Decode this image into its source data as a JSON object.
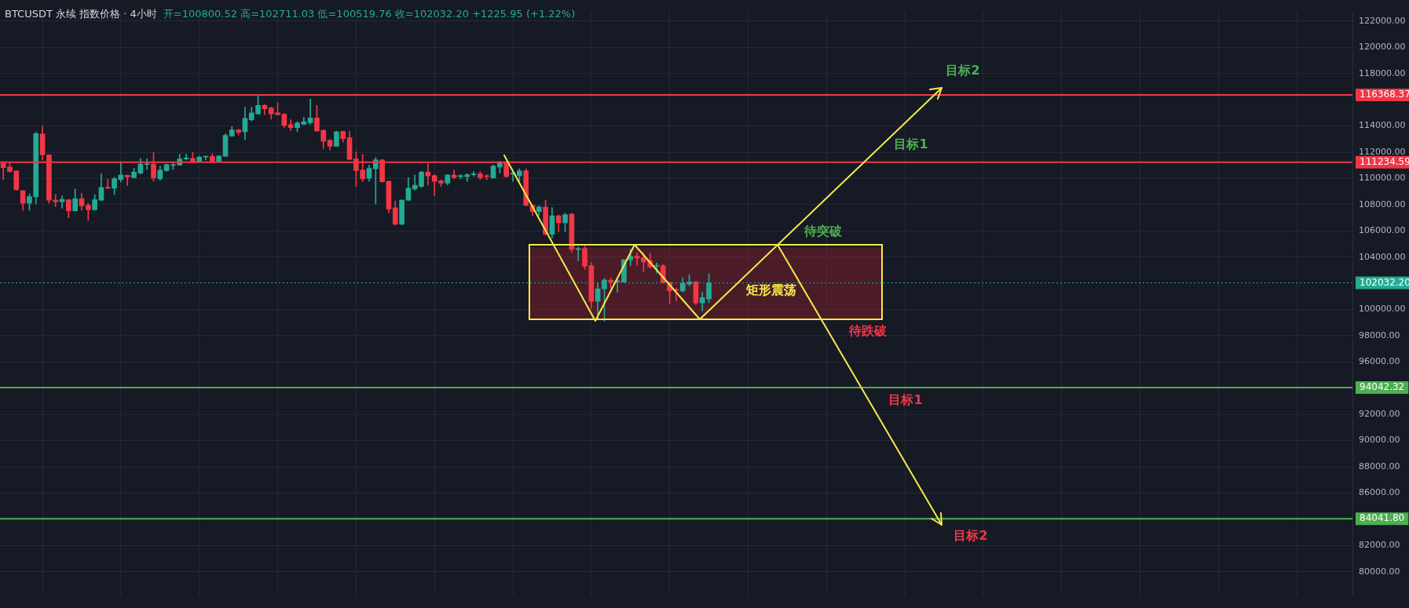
{
  "chart_data": {
    "type": "candlestick",
    "title": "BTCUSDT 永续 指数价格 · 4小时",
    "subtitle": "开=100800.52 高=102711.03 低=100519.76 收=102032.20 +1225.95 (+1.22%)",
    "categories": [
      null,
      null,
      null,
      null,
      null,
      null,
      null,
      null,
      null,
      null,
      null,
      null,
      null,
      null,
      null,
      null,
      null,
      null,
      null,
      null,
      null,
      null,
      null,
      null,
      null,
      null,
      null,
      null,
      null,
      null,
      null,
      null,
      null,
      null,
      null,
      null,
      null,
      null,
      null,
      null,
      null,
      null,
      null,
      null,
      null,
      null,
      null,
      null,
      null,
      null,
      null,
      null,
      null,
      null,
      null,
      null,
      null,
      null,
      null,
      null,
      null,
      null,
      null,
      null,
      null,
      null,
      null,
      null,
      null,
      null,
      null,
      null,
      null,
      null,
      null,
      null,
      null,
      null,
      null,
      null,
      null,
      null,
      null,
      null,
      null,
      null,
      null,
      null,
      null,
      null,
      null,
      null,
      null,
      null,
      null,
      null,
      null,
      null,
      null,
      null,
      null,
      null,
      null,
      null,
      null,
      null,
      null,
      null,
      null,
      null,
      null,
      null,
      null,
      null,
      null,
      null,
      null,
      null,
      null,
      null,
      null,
      null,
      null,
      null,
      null,
      null,
      null,
      null,
      null,
      null,
      null,
      null,
      null,
      null,
      null,
      null,
      null,
      null,
      null,
      null,
      null,
      null,
      null,
      null,
      null,
      null,
      null,
      null,
      null,
      null,
      null,
      null,
      null,
      null,
      null,
      null,
      null,
      null,
      null,
      null,
      null,
      null,
      null,
      null,
      null,
      null,
      null,
      null,
      null,
      null,
      null,
      null,
      null,
      null,
      null,
      null,
      null,
      null,
      null,
      null,
      null,
      null,
      null,
      null,
      null,
      null,
      null,
      null,
      null,
      null,
      null,
      null,
      null,
      null,
      null,
      null,
      null,
      null,
      null,
      null,
      null,
      null,
      null,
      null,
      null,
      null,
      null
    ],
    "ohlc": [
      [
        111160,
        111250,
        109910,
        110830
      ],
      [
        110870,
        111220,
        110450,
        110540
      ],
      [
        110580,
        110600,
        109100,
        109140
      ],
      [
        109070,
        109100,
        107570,
        108110
      ],
      [
        108110,
        108820,
        107570,
        108620
      ],
      [
        108590,
        113520,
        108050,
        113420
      ],
      [
        113390,
        114000,
        111410,
        111790
      ],
      [
        111790,
        111830,
        108110,
        108340
      ],
      [
        108340,
        108760,
        107860,
        108220
      ],
      [
        108220,
        108680,
        107720,
        108410
      ],
      [
        108370,
        108410,
        106990,
        107530
      ],
      [
        107530,
        109200,
        107500,
        108450
      ],
      [
        108450,
        108870,
        107570,
        107910
      ],
      [
        107950,
        108110,
        106800,
        107610
      ],
      [
        107610,
        108760,
        107570,
        108370
      ],
      [
        108340,
        110350,
        108300,
        109300
      ],
      [
        109330,
        109930,
        109220,
        109260
      ],
      [
        109260,
        110100,
        108760,
        109970
      ],
      [
        109910,
        111220,
        109720,
        110260
      ],
      [
        110240,
        110260,
        109450,
        110100
      ],
      [
        110060,
        110790,
        110030,
        110490
      ],
      [
        110410,
        111540,
        110350,
        111100
      ],
      [
        111060,
        111500,
        110680,
        111120
      ],
      [
        111100,
        111980,
        109780,
        110030
      ],
      [
        109970,
        110970,
        109870,
        110640
      ],
      [
        110600,
        111120,
        110540,
        111060
      ],
      [
        110990,
        111220,
        110680,
        111020
      ],
      [
        111020,
        111850,
        110990,
        111490
      ],
      [
        111490,
        111850,
        111410,
        111560
      ],
      [
        111540,
        111980,
        111250,
        111290
      ],
      [
        111290,
        111700,
        111250,
        111640
      ],
      [
        111640,
        111700,
        111410,
        111680
      ],
      [
        111680,
        111890,
        111250,
        111270
      ],
      [
        111270,
        111750,
        111250,
        111720
      ],
      [
        111700,
        113420,
        111680,
        113290
      ],
      [
        113230,
        113960,
        113200,
        113710
      ],
      [
        113710,
        113750,
        113330,
        113520
      ],
      [
        113560,
        115440,
        112940,
        114580
      ],
      [
        114480,
        115440,
        114380,
        115000
      ],
      [
        114920,
        116290,
        114900,
        115570
      ],
      [
        115570,
        115630,
        114860,
        115310
      ],
      [
        115380,
        115440,
        114520,
        114920
      ],
      [
        115000,
        115790,
        114830,
        114860
      ],
      [
        114900,
        114960,
        113870,
        114040
      ],
      [
        114100,
        114480,
        113650,
        113870
      ],
      [
        113870,
        114330,
        113560,
        114230
      ],
      [
        114130,
        114670,
        114100,
        114330
      ],
      [
        114250,
        116050,
        114130,
        114610
      ],
      [
        114610,
        115570,
        113580,
        113620
      ],
      [
        113670,
        113710,
        112270,
        112850
      ],
      [
        112910,
        112980,
        112180,
        112460
      ],
      [
        112460,
        113620,
        112430,
        113560
      ],
      [
        113580,
        113620,
        112790,
        113040
      ],
      [
        113100,
        113620,
        111420,
        111450
      ],
      [
        111490,
        112020,
        109390,
        110600
      ],
      [
        110640,
        111830,
        109780,
        109970
      ],
      [
        110010,
        111020,
        109780,
        110770
      ],
      [
        110740,
        111600,
        108050,
        111410
      ],
      [
        111410,
        111450,
        109720,
        109740
      ],
      [
        109780,
        109810,
        107380,
        107660
      ],
      [
        107760,
        108280,
        106450,
        106510
      ],
      [
        106510,
        108370,
        106450,
        108340
      ],
      [
        108340,
        110060,
        108300,
        109260
      ],
      [
        109200,
        110260,
        109100,
        109490
      ],
      [
        109390,
        110540,
        109300,
        110490
      ],
      [
        110490,
        111120,
        109490,
        110180
      ],
      [
        110220,
        110290,
        108680,
        109780
      ],
      [
        109830,
        109870,
        109390,
        109640
      ],
      [
        109640,
        110290,
        109490,
        110260
      ],
      [
        110260,
        110640,
        109970,
        110060
      ],
      [
        110140,
        110290,
        109970,
        110220
      ],
      [
        110140,
        110350,
        109780,
        110290
      ],
      [
        110290,
        110530,
        110160,
        110350
      ],
      [
        110350,
        110510,
        109910,
        110060
      ],
      [
        110200,
        110290,
        109910,
        110140
      ],
      [
        110030,
        111020,
        110030,
        110930
      ],
      [
        110870,
        111310,
        110410,
        111220
      ],
      [
        111270,
        111310,
        110100,
        110140
      ],
      [
        110330,
        110540,
        109780,
        110410
      ],
      [
        110200,
        110740,
        109780,
        110580
      ],
      [
        110580,
        110740,
        107900,
        107950
      ],
      [
        107950,
        107990,
        107180,
        107470
      ],
      [
        107470,
        107910,
        107180,
        107820
      ],
      [
        107820,
        108340,
        105700,
        105740
      ],
      [
        105740,
        107760,
        105460,
        107150
      ],
      [
        107150,
        107220,
        105940,
        106610
      ],
      [
        106610,
        107340,
        105940,
        107240
      ],
      [
        107280,
        107340,
        104340,
        104590
      ],
      [
        104570,
        104780,
        103730,
        104650
      ],
      [
        104650,
        104840,
        103060,
        103310
      ],
      [
        103340,
        103570,
        100080,
        100620
      ],
      [
        100620,
        102000,
        99220,
        101580
      ],
      [
        101580,
        102380,
        99120,
        102250
      ],
      [
        102230,
        102420,
        101620,
        102100
      ],
      [
        102100,
        102380,
        101330,
        102190
      ],
      [
        102100,
        103820,
        102080,
        103790
      ],
      [
        103790,
        104590,
        103340,
        104070
      ],
      [
        104070,
        104340,
        103380,
        103920
      ],
      [
        103960,
        104300,
        102860,
        103630
      ],
      [
        103730,
        104300,
        103150,
        103250
      ],
      [
        103310,
        103540,
        102770,
        103340
      ],
      [
        103340,
        103440,
        102000,
        102060
      ],
      [
        102060,
        102100,
        100460,
        101420
      ],
      [
        101520,
        101620,
        100660,
        101460
      ],
      [
        101420,
        102420,
        101330,
        102000
      ],
      [
        101940,
        102670,
        101810,
        102100
      ],
      [
        102100,
        102150,
        100370,
        100500
      ],
      [
        100500,
        101330,
        99890,
        100910
      ],
      [
        100800.52,
        102711.03,
        100519.76,
        102032.2
      ],
      null,
      null,
      null,
      null,
      null,
      null,
      null,
      null,
      null,
      null,
      null,
      null,
      null,
      null,
      null,
      null,
      null,
      null,
      null,
      null,
      null,
      null,
      null,
      null,
      null,
      null,
      null,
      null,
      null,
      null,
      null,
      null,
      null,
      null,
      null,
      null,
      null,
      null,
      null,
      null,
      null,
      null,
      null,
      null,
      null,
      null,
      null,
      null,
      null,
      null,
      null,
      null,
      null,
      null,
      null,
      null,
      null,
      null,
      null,
      null,
      null,
      null,
      null,
      null,
      null,
      null,
      null,
      null,
      null,
      null,
      null,
      null,
      null,
      null,
      null,
      null,
      null,
      null,
      null,
      null,
      null,
      null,
      null,
      null,
      null,
      null,
      null,
      null,
      null,
      null,
      null,
      null,
      null,
      null,
      null,
      null,
      null,
      null
    ],
    "bands": [
      {
        "axis": "y",
        "from": 99300,
        "to": 104750,
        "color": "#8c1e2d"
      }
    ],
    "ref_lines": [
      {
        "axis": "y",
        "value": 116368.37,
        "label": "116368.37",
        "color": "#f23645"
      },
      {
        "axis": "y",
        "value": 111234.59,
        "label": "111234.59",
        "color": "#f23645"
      },
      {
        "axis": "y",
        "value": 102032.2,
        "label": "102032.20",
        "color": "#22ab94",
        "line_style": "dotted"
      },
      {
        "axis": "y",
        "value": 94042.32,
        "label": "94042.32",
        "color": "#4caf50"
      },
      {
        "axis": "y",
        "value": 84041.8,
        "label": "84041.80",
        "color": "#4caf50"
      }
    ],
    "annotations": [
      "目标2",
      "目标1",
      "待突破",
      "矩形震荡",
      "待跌破",
      "目标1",
      "目标2"
    ],
    "ylim": [
      78100,
      122740
    ],
    "yticks": [
      {
        "value": 80000,
        "label": "80000.00"
      },
      {
        "value": 82000,
        "label": "82000.00"
      },
      {
        "value": 86000,
        "label": "86000.00"
      },
      {
        "value": 88000,
        "label": "88000.00"
      },
      {
        "value": 90000,
        "label": "90000.00"
      },
      {
        "value": 92000,
        "label": "92000.00"
      },
      {
        "value": 96000,
        "label": "96000.00"
      },
      {
        "value": 98000,
        "label": "98000.00"
      },
      {
        "value": 100000,
        "label": "100000.00"
      },
      {
        "value": 104000,
        "label": "104000.00"
      },
      {
        "value": 106000,
        "label": "106000.00"
      },
      {
        "value": 108000,
        "label": "108000.00"
      },
      {
        "value": 110000,
        "label": "110000.00"
      },
      {
        "value": 112000,
        "label": "112000.00"
      },
      {
        "value": 114000,
        "label": "114000.00"
      },
      {
        "value": 118000,
        "label": "118000.00"
      },
      {
        "value": 120000,
        "label": "120000.00"
      },
      {
        "value": 122000,
        "label": "122000.00"
      }
    ],
    "grid": true,
    "legend": false,
    "tick_labels": "y"
  }
}
